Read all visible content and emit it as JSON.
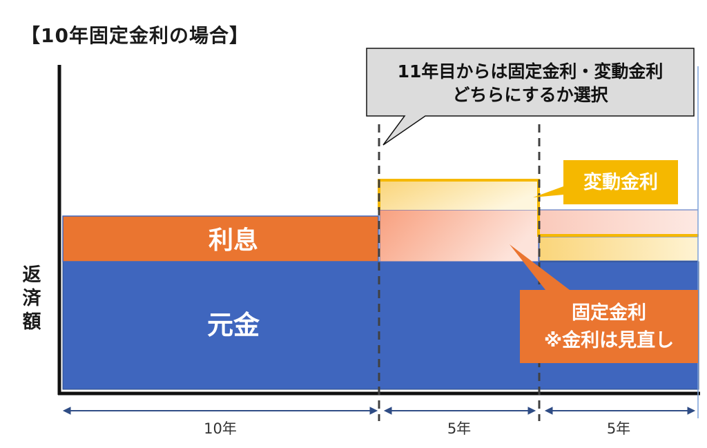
{
  "title": "【10年固定金利の場合】",
  "y_axis_label": "返済額",
  "callout_top": {
    "line1": "11年目からは固定金利・変動金利",
    "line2": "どちらにするか選択"
  },
  "blocks": {
    "interest_label": "利息",
    "principal_label": "元金"
  },
  "labels": {
    "variable_rate": "変動金利",
    "fixed_rate_line1": "固定金利",
    "fixed_rate_line2": "※金利は見直し"
  },
  "periods": [
    "10年",
    "5年",
    "5年"
  ],
  "colors": {
    "principal": "#3F66BE",
    "interest": "#EA7530",
    "variable_line": "#F5B800",
    "callout_bg": "#DCDCDC",
    "period_arrow": "#2F4C85"
  }
}
